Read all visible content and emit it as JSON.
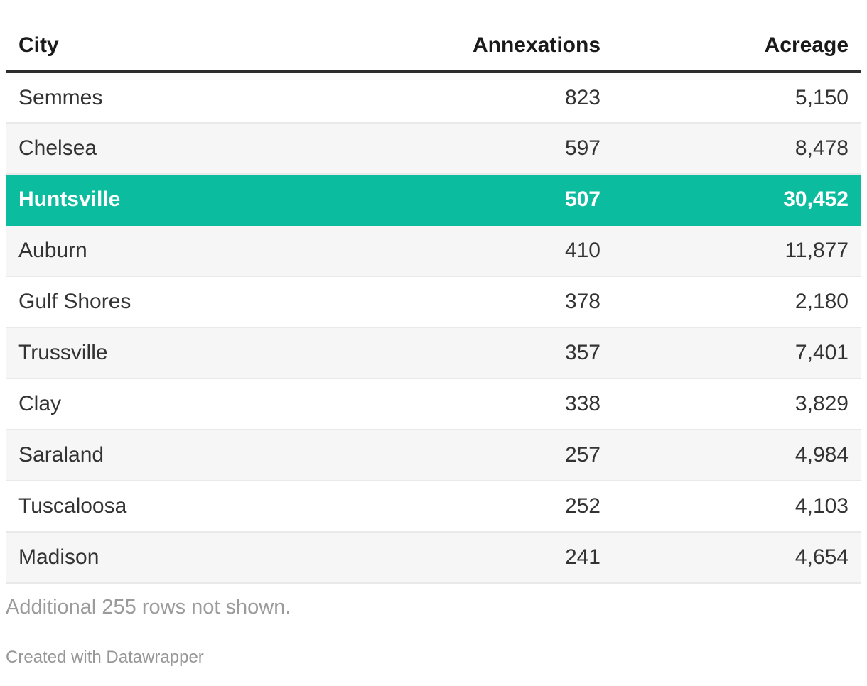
{
  "table": {
    "columns": [
      {
        "label": "City",
        "align": "left"
      },
      {
        "label": "Annexations",
        "align": "right"
      },
      {
        "label": "Acreage",
        "align": "right"
      }
    ],
    "rows": [
      {
        "city": "Semmes",
        "annexations": "823",
        "acreage": "5,150",
        "highlight": false
      },
      {
        "city": "Chelsea",
        "annexations": "597",
        "acreage": "8,478",
        "highlight": false
      },
      {
        "city": "Huntsville",
        "annexations": "507",
        "acreage": "30,452",
        "highlight": true
      },
      {
        "city": "Auburn",
        "annexations": "410",
        "acreage": "11,877",
        "highlight": false
      },
      {
        "city": "Gulf Shores",
        "annexations": "378",
        "acreage": "2,180",
        "highlight": false
      },
      {
        "city": "Trussville",
        "annexations": "357",
        "acreage": "7,401",
        "highlight": false
      },
      {
        "city": "Clay",
        "annexations": "338",
        "acreage": "3,829",
        "highlight": false
      },
      {
        "city": "Saraland",
        "annexations": "257",
        "acreage": "4,984",
        "highlight": false
      },
      {
        "city": "Tuscaloosa",
        "annexations": "252",
        "acreage": "4,103",
        "highlight": false
      },
      {
        "city": "Madison",
        "annexations": "241",
        "acreage": "4,654",
        "highlight": false
      }
    ],
    "note": "Additional 255 rows not shown."
  },
  "attribution": {
    "text": "Created with Datawrapper"
  },
  "colors": {
    "highlight_row": "#0cbc9e",
    "highlight_text": "#ffffff",
    "stripe": "#f6f6f6",
    "row_border": "#e9e9e9",
    "header_rule": "#2e2e2e",
    "body_text": "#333333",
    "muted_text": "#9b9b9b"
  },
  "chart_data": {
    "type": "table",
    "columns": [
      "City",
      "Annexations",
      "Acreage"
    ],
    "rows": [
      [
        "Semmes",
        823,
        5150
      ],
      [
        "Chelsea",
        597,
        8478
      ],
      [
        "Huntsville",
        507,
        30452
      ],
      [
        "Auburn",
        410,
        11877
      ],
      [
        "Gulf Shores",
        378,
        2180
      ],
      [
        "Trussville",
        357,
        7401
      ],
      [
        "Clay",
        338,
        3829
      ],
      [
        "Saraland",
        257,
        4984
      ],
      [
        "Tuscaloosa",
        252,
        4103
      ],
      [
        "Madison",
        241,
        4654
      ]
    ],
    "highlighted_row": "Huntsville",
    "note": "Additional 255 rows not shown.",
    "attribution": "Created with Datawrapper",
    "layout_hints": {
      "striping": "even-rows-gray",
      "number_alignment": "right",
      "grid": "horizontal-rules-only"
    }
  }
}
